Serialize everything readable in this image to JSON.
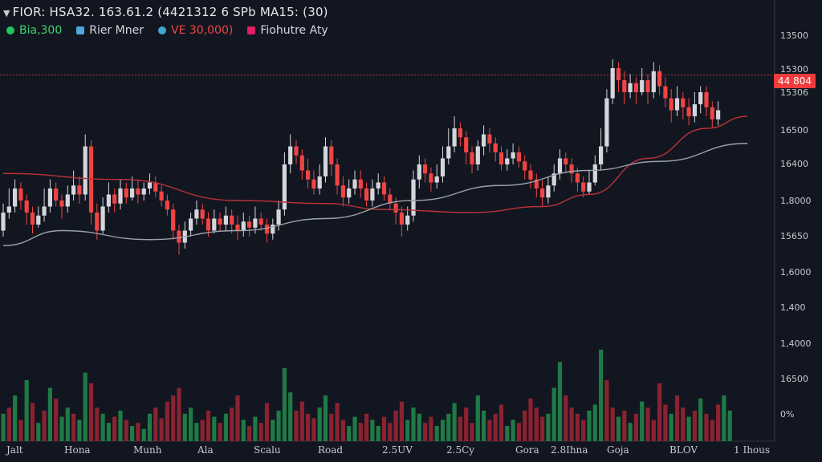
{
  "header": {
    "title": "FIOR: HSA32. 163.61.2 (4421312 6 SPb MA15: (30)"
  },
  "legend": [
    {
      "label": "Bia,300",
      "color": "#22c55e"
    },
    {
      "label": "Rier Mner",
      "color": "#4fa7d8"
    },
    {
      "label": "VE 30,000)",
      "color": "#ef4444"
    },
    {
      "label": "Fiohutre Aty",
      "color": "#e11d63"
    }
  ],
  "price_tag": {
    "label": "44 804",
    "color": "#ef3b3b"
  },
  "y_axis": {
    "ticks": [
      "13500",
      "15300",
      "15306",
      "16500",
      "16400",
      "1,8000",
      "15650",
      "1,6000",
      "1,400",
      "1,4000",
      "16500",
      "0%"
    ]
  },
  "x_axis": {
    "ticks": [
      "Jalt",
      "Hona",
      "Munh",
      "Ala",
      "Scalu",
      "Road",
      "2.5UV",
      "2.5Cy",
      "Gora",
      "2.8Ihna",
      "Goja",
      "BLOV",
      "1 Ihous"
    ]
  },
  "colors": {
    "background": "#121620",
    "up": "#d4d6db",
    "down": "#ef4444",
    "vol_up": "#1f7a45",
    "vol_down": "#8a2230",
    "ma_grey": "#9aa1ab",
    "ma_red": "#b8323a"
  },
  "chart_data": {
    "type": "candlestick",
    "ylim": [
      0,
      100
    ],
    "candles": [
      {
        "o": 38,
        "c": 44,
        "h": 47,
        "l": 36
      },
      {
        "o": 44,
        "c": 46,
        "h": 52,
        "l": 42
      },
      {
        "o": 46,
        "c": 52,
        "h": 55,
        "l": 44
      },
      {
        "o": 52,
        "c": 48,
        "h": 54,
        "l": 45
      },
      {
        "o": 48,
        "c": 44,
        "h": 50,
        "l": 40
      },
      {
        "o": 44,
        "c": 40,
        "h": 46,
        "l": 37
      },
      {
        "o": 40,
        "c": 43,
        "h": 46,
        "l": 39
      },
      {
        "o": 43,
        "c": 46,
        "h": 52,
        "l": 41
      },
      {
        "o": 46,
        "c": 52,
        "h": 55,
        "l": 44
      },
      {
        "o": 52,
        "c": 48,
        "h": 54,
        "l": 46
      },
      {
        "o": 48,
        "c": 46,
        "h": 50,
        "l": 42
      },
      {
        "o": 46,
        "c": 50,
        "h": 53,
        "l": 44
      },
      {
        "o": 50,
        "c": 53,
        "h": 58,
        "l": 48
      },
      {
        "o": 53,
        "c": 50,
        "h": 56,
        "l": 47
      },
      {
        "o": 50,
        "c": 66,
        "h": 70,
        "l": 48
      },
      {
        "o": 66,
        "c": 44,
        "h": 68,
        "l": 40
      },
      {
        "o": 44,
        "c": 38,
        "h": 47,
        "l": 35
      },
      {
        "o": 38,
        "c": 46,
        "h": 49,
        "l": 37
      },
      {
        "o": 46,
        "c": 50,
        "h": 54,
        "l": 44
      },
      {
        "o": 50,
        "c": 47,
        "h": 52,
        "l": 44
      },
      {
        "o": 47,
        "c": 52,
        "h": 55,
        "l": 45
      },
      {
        "o": 52,
        "c": 49,
        "h": 54,
        "l": 47
      },
      {
        "o": 49,
        "c": 52,
        "h": 56,
        "l": 48
      },
      {
        "o": 52,
        "c": 50,
        "h": 55,
        "l": 47
      },
      {
        "o": 50,
        "c": 52,
        "h": 54,
        "l": 48
      },
      {
        "o": 52,
        "c": 54,
        "h": 57,
        "l": 50
      },
      {
        "o": 54,
        "c": 51,
        "h": 56,
        "l": 49
      },
      {
        "o": 51,
        "c": 48,
        "h": 53,
        "l": 46
      },
      {
        "o": 48,
        "c": 45,
        "h": 50,
        "l": 43
      },
      {
        "o": 45,
        "c": 38,
        "h": 47,
        "l": 35
      },
      {
        "o": 38,
        "c": 34,
        "h": 40,
        "l": 30
      },
      {
        "o": 34,
        "c": 38,
        "h": 41,
        "l": 32
      },
      {
        "o": 38,
        "c": 42,
        "h": 44,
        "l": 36
      },
      {
        "o": 42,
        "c": 45,
        "h": 48,
        "l": 40
      },
      {
        "o": 45,
        "c": 42,
        "h": 47,
        "l": 40
      },
      {
        "o": 42,
        "c": 38,
        "h": 44,
        "l": 36
      },
      {
        "o": 38,
        "c": 42,
        "h": 45,
        "l": 37
      },
      {
        "o": 42,
        "c": 40,
        "h": 44,
        "l": 38
      },
      {
        "o": 40,
        "c": 43,
        "h": 46,
        "l": 38
      },
      {
        "o": 43,
        "c": 40,
        "h": 45,
        "l": 37
      },
      {
        "o": 40,
        "c": 38,
        "h": 43,
        "l": 35
      },
      {
        "o": 38,
        "c": 41,
        "h": 44,
        "l": 36
      },
      {
        "o": 41,
        "c": 39,
        "h": 43,
        "l": 36
      },
      {
        "o": 39,
        "c": 42,
        "h": 46,
        "l": 37
      },
      {
        "o": 42,
        "c": 40,
        "h": 44,
        "l": 38
      },
      {
        "o": 40,
        "c": 37,
        "h": 42,
        "l": 34
      },
      {
        "o": 37,
        "c": 40,
        "h": 42,
        "l": 35
      },
      {
        "o": 40,
        "c": 45,
        "h": 48,
        "l": 38
      },
      {
        "o": 45,
        "c": 60,
        "h": 64,
        "l": 43
      },
      {
        "o": 60,
        "c": 66,
        "h": 70,
        "l": 57
      },
      {
        "o": 66,
        "c": 63,
        "h": 68,
        "l": 60
      },
      {
        "o": 63,
        "c": 58,
        "h": 65,
        "l": 55
      },
      {
        "o": 58,
        "c": 55,
        "h": 62,
        "l": 52
      },
      {
        "o": 55,
        "c": 52,
        "h": 58,
        "l": 50
      },
      {
        "o": 52,
        "c": 56,
        "h": 60,
        "l": 50
      },
      {
        "o": 56,
        "c": 66,
        "h": 69,
        "l": 54
      },
      {
        "o": 66,
        "c": 60,
        "h": 68,
        "l": 56
      },
      {
        "o": 60,
        "c": 53,
        "h": 62,
        "l": 50
      },
      {
        "o": 53,
        "c": 49,
        "h": 56,
        "l": 46
      },
      {
        "o": 49,
        "c": 52,
        "h": 55,
        "l": 47
      },
      {
        "o": 52,
        "c": 55,
        "h": 58,
        "l": 50
      },
      {
        "o": 55,
        "c": 52,
        "h": 58,
        "l": 49
      },
      {
        "o": 52,
        "c": 48,
        "h": 54,
        "l": 46
      },
      {
        "o": 48,
        "c": 52,
        "h": 55,
        "l": 46
      },
      {
        "o": 52,
        "c": 54,
        "h": 57,
        "l": 50
      },
      {
        "o": 54,
        "c": 50,
        "h": 56,
        "l": 48
      },
      {
        "o": 50,
        "c": 47,
        "h": 52,
        "l": 45
      },
      {
        "o": 47,
        "c": 44,
        "h": 49,
        "l": 40
      },
      {
        "o": 44,
        "c": 40,
        "h": 46,
        "l": 36
      },
      {
        "o": 40,
        "c": 43,
        "h": 46,
        "l": 38
      },
      {
        "o": 43,
        "c": 55,
        "h": 58,
        "l": 41
      },
      {
        "o": 55,
        "c": 60,
        "h": 63,
        "l": 52
      },
      {
        "o": 60,
        "c": 57,
        "h": 62,
        "l": 54
      },
      {
        "o": 57,
        "c": 54,
        "h": 59,
        "l": 51
      },
      {
        "o": 54,
        "c": 56,
        "h": 60,
        "l": 52
      },
      {
        "o": 56,
        "c": 62,
        "h": 66,
        "l": 54
      },
      {
        "o": 62,
        "c": 66,
        "h": 72,
        "l": 60
      },
      {
        "o": 66,
        "c": 72,
        "h": 76,
        "l": 64
      },
      {
        "o": 72,
        "c": 69,
        "h": 74,
        "l": 66
      },
      {
        "o": 69,
        "c": 64,
        "h": 71,
        "l": 60
      },
      {
        "o": 64,
        "c": 60,
        "h": 66,
        "l": 57
      },
      {
        "o": 60,
        "c": 66,
        "h": 68,
        "l": 58
      },
      {
        "o": 66,
        "c": 70,
        "h": 73,
        "l": 63
      },
      {
        "o": 70,
        "c": 67,
        "h": 72,
        "l": 64
      },
      {
        "o": 67,
        "c": 64,
        "h": 69,
        "l": 61
      },
      {
        "o": 64,
        "c": 60,
        "h": 66,
        "l": 58
      },
      {
        "o": 60,
        "c": 62,
        "h": 65,
        "l": 58
      },
      {
        "o": 62,
        "c": 64,
        "h": 67,
        "l": 60
      },
      {
        "o": 64,
        "c": 61,
        "h": 66,
        "l": 59
      },
      {
        "o": 61,
        "c": 58,
        "h": 63,
        "l": 55
      },
      {
        "o": 58,
        "c": 55,
        "h": 60,
        "l": 52
      },
      {
        "o": 55,
        "c": 52,
        "h": 57,
        "l": 49
      },
      {
        "o": 52,
        "c": 49,
        "h": 55,
        "l": 46
      },
      {
        "o": 49,
        "c": 53,
        "h": 56,
        "l": 47
      },
      {
        "o": 53,
        "c": 57,
        "h": 60,
        "l": 51
      },
      {
        "o": 57,
        "c": 62,
        "h": 65,
        "l": 55
      },
      {
        "o": 62,
        "c": 60,
        "h": 64,
        "l": 57
      },
      {
        "o": 60,
        "c": 57,
        "h": 62,
        "l": 54
      },
      {
        "o": 57,
        "c": 54,
        "h": 59,
        "l": 51
      },
      {
        "o": 54,
        "c": 51,
        "h": 56,
        "l": 49
      },
      {
        "o": 51,
        "c": 54,
        "h": 58,
        "l": 50
      },
      {
        "o": 54,
        "c": 60,
        "h": 63,
        "l": 53
      },
      {
        "o": 60,
        "c": 66,
        "h": 72,
        "l": 58
      },
      {
        "o": 66,
        "c": 82,
        "h": 85,
        "l": 64
      },
      {
        "o": 82,
        "c": 92,
        "h": 95,
        "l": 80
      },
      {
        "o": 92,
        "c": 88,
        "h": 94,
        "l": 84
      },
      {
        "o": 88,
        "c": 84,
        "h": 91,
        "l": 80
      },
      {
        "o": 84,
        "c": 87,
        "h": 90,
        "l": 82
      },
      {
        "o": 87,
        "c": 84,
        "h": 89,
        "l": 80
      },
      {
        "o": 84,
        "c": 88,
        "h": 92,
        "l": 83
      },
      {
        "o": 88,
        "c": 84,
        "h": 90,
        "l": 80
      },
      {
        "o": 84,
        "c": 91,
        "h": 94,
        "l": 82
      },
      {
        "o": 91,
        "c": 86,
        "h": 93,
        "l": 83
      },
      {
        "o": 86,
        "c": 82,
        "h": 89,
        "l": 79
      },
      {
        "o": 82,
        "c": 78,
        "h": 85,
        "l": 74
      },
      {
        "o": 78,
        "c": 82,
        "h": 86,
        "l": 76
      },
      {
        "o": 82,
        "c": 79,
        "h": 84,
        "l": 75
      },
      {
        "o": 79,
        "c": 76,
        "h": 82,
        "l": 73
      },
      {
        "o": 76,
        "c": 80,
        "h": 84,
        "l": 74
      },
      {
        "o": 80,
        "c": 84,
        "h": 86,
        "l": 77
      },
      {
        "o": 84,
        "c": 79,
        "h": 86,
        "l": 76
      },
      {
        "o": 79,
        "c": 75,
        "h": 81,
        "l": 72
      },
      {
        "o": 75,
        "c": 78,
        "h": 81,
        "l": 73
      }
    ],
    "volume": [
      {
        "v": 18,
        "up": true
      },
      {
        "v": 22,
        "up": false
      },
      {
        "v": 30,
        "up": true
      },
      {
        "v": 14,
        "up": false
      },
      {
        "v": 40,
        "up": true
      },
      {
        "v": 25,
        "up": false
      },
      {
        "v": 12,
        "up": true
      },
      {
        "v": 20,
        "up": false
      },
      {
        "v": 35,
        "up": true
      },
      {
        "v": 28,
        "up": false
      },
      {
        "v": 16,
        "up": true
      },
      {
        "v": 22,
        "up": true
      },
      {
        "v": 18,
        "up": false
      },
      {
        "v": 14,
        "up": true
      },
      {
        "v": 45,
        "up": true
      },
      {
        "v": 38,
        "up": false
      },
      {
        "v": 22,
        "up": false
      },
      {
        "v": 18,
        "up": true
      },
      {
        "v": 12,
        "up": true
      },
      {
        "v": 16,
        "up": false
      },
      {
        "v": 20,
        "up": true
      },
      {
        "v": 14,
        "up": false
      },
      {
        "v": 10,
        "up": true
      },
      {
        "v": 12,
        "up": false
      },
      {
        "v": 8,
        "up": true
      },
      {
        "v": 18,
        "up": true
      },
      {
        "v": 22,
        "up": false
      },
      {
        "v": 15,
        "up": false
      },
      {
        "v": 26,
        "up": false
      },
      {
        "v": 30,
        "up": false
      },
      {
        "v": 35,
        "up": false
      },
      {
        "v": 18,
        "up": true
      },
      {
        "v": 22,
        "up": true
      },
      {
        "v": 12,
        "up": true
      },
      {
        "v": 14,
        "up": false
      },
      {
        "v": 20,
        "up": false
      },
      {
        "v": 16,
        "up": true
      },
      {
        "v": 12,
        "up": false
      },
      {
        "v": 18,
        "up": true
      },
      {
        "v": 22,
        "up": false
      },
      {
        "v": 30,
        "up": false
      },
      {
        "v": 14,
        "up": true
      },
      {
        "v": 10,
        "up": false
      },
      {
        "v": 16,
        "up": true
      },
      {
        "v": 12,
        "up": false
      },
      {
        "v": 25,
        "up": false
      },
      {
        "v": 14,
        "up": true
      },
      {
        "v": 20,
        "up": true
      },
      {
        "v": 48,
        "up": true
      },
      {
        "v": 32,
        "up": true
      },
      {
        "v": 20,
        "up": false
      },
      {
        "v": 26,
        "up": false
      },
      {
        "v": 18,
        "up": false
      },
      {
        "v": 15,
        "up": false
      },
      {
        "v": 22,
        "up": true
      },
      {
        "v": 30,
        "up": true
      },
      {
        "v": 18,
        "up": false
      },
      {
        "v": 25,
        "up": false
      },
      {
        "v": 14,
        "up": false
      },
      {
        "v": 10,
        "up": true
      },
      {
        "v": 16,
        "up": true
      },
      {
        "v": 12,
        "up": false
      },
      {
        "v": 18,
        "up": false
      },
      {
        "v": 14,
        "up": true
      },
      {
        "v": 10,
        "up": true
      },
      {
        "v": 16,
        "up": false
      },
      {
        "v": 12,
        "up": false
      },
      {
        "v": 20,
        "up": false
      },
      {
        "v": 26,
        "up": false
      },
      {
        "v": 14,
        "up": true
      },
      {
        "v": 22,
        "up": true
      },
      {
        "v": 18,
        "up": true
      },
      {
        "v": 12,
        "up": false
      },
      {
        "v": 16,
        "up": false
      },
      {
        "v": 10,
        "up": true
      },
      {
        "v": 14,
        "up": true
      },
      {
        "v": 18,
        "up": true
      },
      {
        "v": 25,
        "up": true
      },
      {
        "v": 16,
        "up": false
      },
      {
        "v": 22,
        "up": false
      },
      {
        "v": 12,
        "up": false
      },
      {
        "v": 30,
        "up": true
      },
      {
        "v": 20,
        "up": true
      },
      {
        "v": 14,
        "up": false
      },
      {
        "v": 18,
        "up": false
      },
      {
        "v": 24,
        "up": false
      },
      {
        "v": 10,
        "up": true
      },
      {
        "v": 14,
        "up": true
      },
      {
        "v": 12,
        "up": false
      },
      {
        "v": 20,
        "up": false
      },
      {
        "v": 28,
        "up": false
      },
      {
        "v": 22,
        "up": false
      },
      {
        "v": 16,
        "up": false
      },
      {
        "v": 18,
        "up": true
      },
      {
        "v": 35,
        "up": true
      },
      {
        "v": 52,
        "up": true
      },
      {
        "v": 30,
        "up": false
      },
      {
        "v": 22,
        "up": false
      },
      {
        "v": 18,
        "up": false
      },
      {
        "v": 14,
        "up": false
      },
      {
        "v": 20,
        "up": true
      },
      {
        "v": 24,
        "up": true
      },
      {
        "v": 60,
        "up": true
      },
      {
        "v": 40,
        "up": false
      },
      {
        "v": 22,
        "up": false
      },
      {
        "v": 16,
        "up": true
      },
      {
        "v": 20,
        "up": false
      },
      {
        "v": 12,
        "up": true
      },
      {
        "v": 18,
        "up": false
      },
      {
        "v": 26,
        "up": true
      },
      {
        "v": 22,
        "up": false
      },
      {
        "v": 14,
        "up": false
      },
      {
        "v": 38,
        "up": false
      },
      {
        "v": 24,
        "up": false
      },
      {
        "v": 18,
        "up": true
      },
      {
        "v": 30,
        "up": false
      },
      {
        "v": 22,
        "up": false
      },
      {
        "v": 16,
        "up": true
      },
      {
        "v": 20,
        "up": false
      },
      {
        "v": 28,
        "up": true
      },
      {
        "v": 18,
        "up": false
      },
      {
        "v": 14,
        "up": false
      },
      {
        "v": 24,
        "up": false
      },
      {
        "v": 30,
        "up": true
      },
      {
        "v": 20,
        "up": true
      }
    ],
    "ma_grey": [
      [
        0,
        33
      ],
      [
        10,
        38
      ],
      [
        25,
        35
      ],
      [
        40,
        38
      ],
      [
        55,
        42
      ],
      [
        70,
        48
      ],
      [
        85,
        53
      ],
      [
        100,
        58
      ],
      [
        112,
        61
      ],
      [
        127,
        67
      ]
    ],
    "ma_red": [
      [
        0,
        57
      ],
      [
        20,
        55
      ],
      [
        40,
        48
      ],
      [
        55,
        47
      ],
      [
        65,
        45
      ],
      [
        80,
        44
      ],
      [
        92,
        46
      ],
      [
        100,
        50
      ],
      [
        110,
        62
      ],
      [
        120,
        72
      ],
      [
        127,
        76
      ]
    ],
    "dashed_price_level": 90
  }
}
